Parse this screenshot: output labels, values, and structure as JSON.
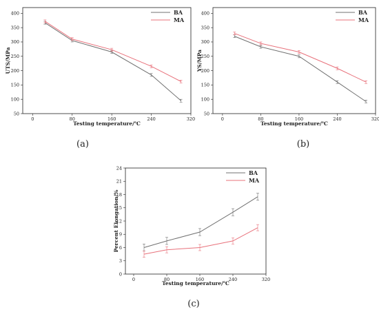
{
  "chart_data": [
    {
      "type": "line",
      "panel_label": "(a)",
      "xlabel": "Testing temperature/℃",
      "ylabel": "UTS/MPa",
      "xlim": [
        -20,
        320
      ],
      "ylim": [
        50,
        420
      ],
      "xticks": [
        0,
        80,
        160,
        240,
        320
      ],
      "yticks": [
        50,
        100,
        150,
        200,
        250,
        300,
        350,
        400
      ],
      "x": [
        25,
        80,
        160,
        240,
        300
      ],
      "legend_position": "top-right",
      "series": [
        {
          "name": "BA",
          "color": "#707070",
          "values": [
            367,
            305,
            265,
            185,
            95
          ],
          "errors": [
            5,
            5,
            5,
            5,
            5
          ]
        },
        {
          "name": "MA",
          "color": "#e8707a",
          "values": [
            372,
            310,
            273,
            215,
            162
          ],
          "errors": [
            5,
            5,
            5,
            5,
            5
          ]
        }
      ]
    },
    {
      "type": "line",
      "panel_label": "(b)",
      "xlabel": "Testing temperature/℃",
      "ylabel": "YS/MPa",
      "xlim": [
        -20,
        320
      ],
      "ylim": [
        50,
        420
      ],
      "xticks": [
        0,
        80,
        160,
        240,
        320
      ],
      "yticks": [
        50,
        100,
        150,
        200,
        250,
        300,
        350,
        400
      ],
      "x": [
        25,
        80,
        160,
        240,
        300
      ],
      "legend_position": "top-right",
      "series": [
        {
          "name": "BA",
          "color": "#707070",
          "values": [
            320,
            283,
            250,
            160,
            92
          ],
          "errors": [
            5,
            5,
            5,
            5,
            5
          ]
        },
        {
          "name": "MA",
          "color": "#e8707a",
          "values": [
            330,
            295,
            265,
            208,
            160
          ],
          "errors": [
            5,
            5,
            5,
            5,
            5
          ]
        }
      ]
    },
    {
      "type": "line",
      "panel_label": "(c)",
      "xlabel": "Testing temperature/℃",
      "ylabel": "Percent Elongation/%",
      "xlim": [
        -20,
        320
      ],
      "ylim": [
        0,
        24
      ],
      "xticks": [
        0,
        80,
        160,
        240,
        320
      ],
      "yticks": [
        0,
        3,
        6,
        9,
        12,
        15,
        18,
        21,
        24
      ],
      "x": [
        25,
        80,
        160,
        240,
        300
      ],
      "legend_position": "top-right",
      "series": [
        {
          "name": "BA",
          "color": "#707070",
          "values": [
            6.0,
            7.5,
            9.5,
            14.0,
            17.5
          ],
          "errors": [
            0.8,
            0.8,
            0.8,
            0.8,
            0.8
          ]
        },
        {
          "name": "MA",
          "color": "#e8707a",
          "values": [
            4.5,
            5.5,
            6.0,
            7.5,
            10.5
          ],
          "errors": [
            0.7,
            0.7,
            0.7,
            0.7,
            0.7
          ]
        }
      ]
    }
  ]
}
